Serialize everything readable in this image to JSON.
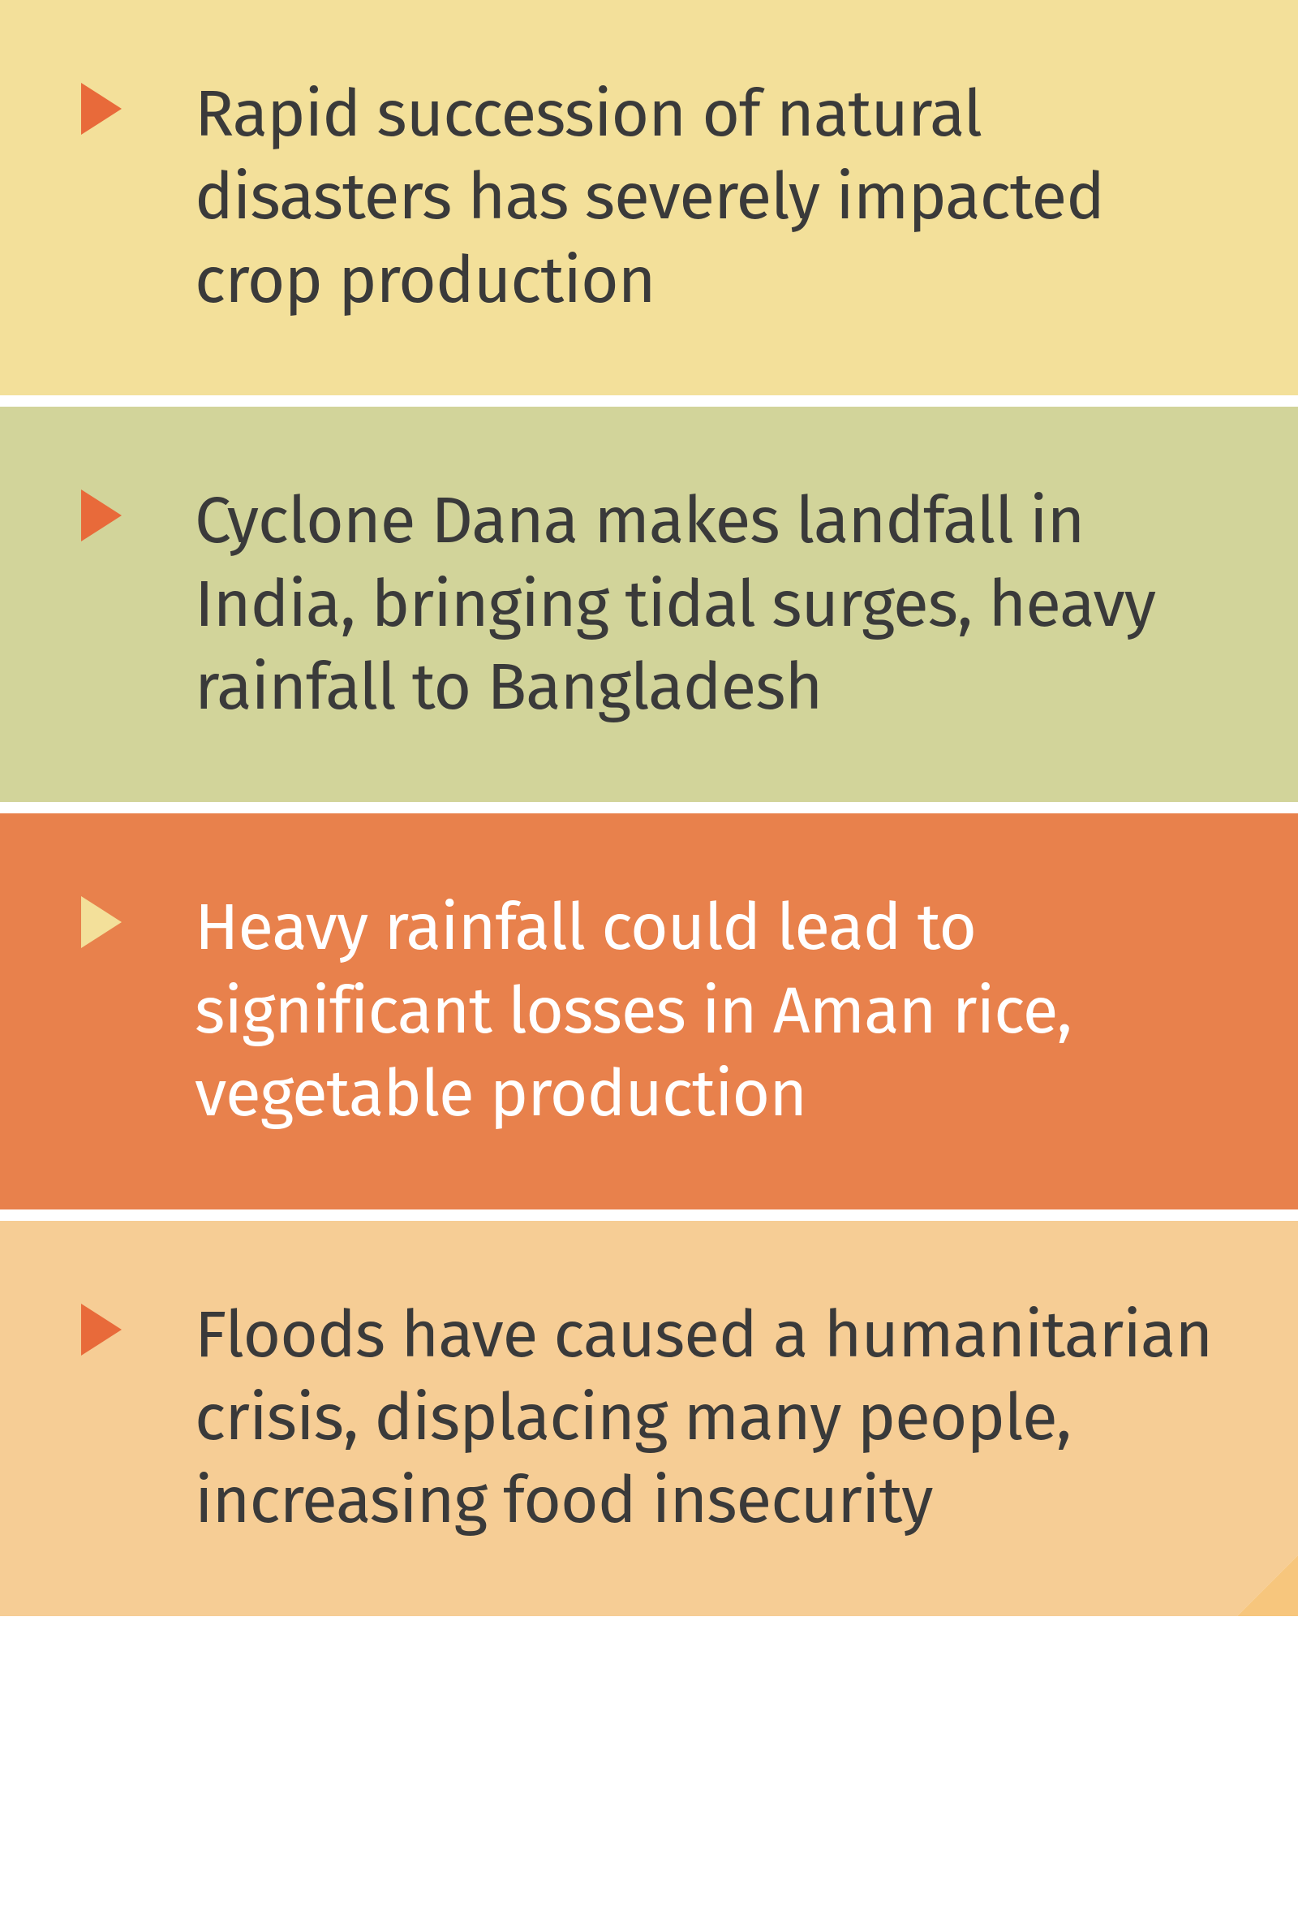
{
  "items": [
    {
      "text": "Rapid succession of natural disasters has severely impacted crop production",
      "bg_color": "#f3e09a",
      "text_color": "#3a3a3a",
      "triangle_color": "#e86a3a"
    },
    {
      "text": "Cyclone Dana makes landfall in India, bringing tidal surges, heavy rainfall to Bangladesh",
      "bg_color": "#d2d49a",
      "text_color": "#3a3a3a",
      "triangle_color": "#e86a3a"
    },
    {
      "text": "Heavy rainfall could lead to significant losses in Aman rice, vegetable production",
      "bg_color": "#e8814c",
      "text_color": "#ffffff",
      "triangle_color": "#f3e09a"
    },
    {
      "text": "Floods have caused a humanitarian crisis, displacing many people, increasing food insecurity",
      "bg_color": "#f6cd95",
      "text_color": "#3a3a3a",
      "triangle_color": "#e86a3a"
    }
  ],
  "corner_fold_color": "#f7c67d",
  "corner_cut_color": "#ffffff"
}
